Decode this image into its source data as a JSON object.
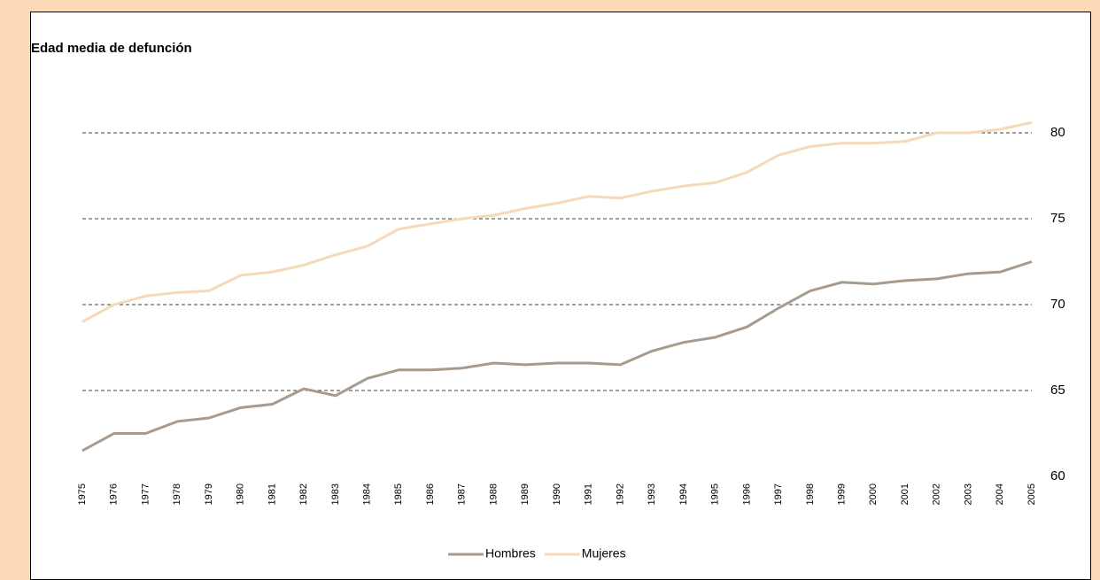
{
  "chart_data": {
    "type": "line",
    "title": "Edad media de defunción",
    "categories": [
      "1975",
      "1976",
      "1977",
      "1978",
      "1979",
      "1980",
      "1981",
      "1982",
      "1983",
      "1984",
      "1985",
      "1986",
      "1987",
      "1988",
      "1989",
      "1990",
      "1991",
      "1992",
      "1993",
      "1994",
      "1995",
      "1996",
      "1997",
      "1998",
      "1999",
      "2000",
      "2001",
      "2002",
      "2003",
      "2004",
      "2005"
    ],
    "series": [
      {
        "name": "Hombres",
        "color": "#a89a8c",
        "values": [
          61.5,
          62.5,
          62.5,
          63.2,
          63.4,
          64.0,
          64.2,
          65.1,
          64.7,
          65.7,
          66.2,
          66.2,
          66.3,
          66.6,
          66.5,
          66.6,
          66.6,
          66.5,
          67.3,
          67.8,
          68.1,
          68.7,
          69.8,
          70.8,
          71.3,
          71.2,
          71.4,
          71.5,
          71.8,
          71.9,
          72.5
        ]
      },
      {
        "name": "Mujeres",
        "color": "#f5d9b8",
        "values": [
          69.0,
          70.0,
          70.5,
          70.7,
          70.8,
          71.7,
          71.9,
          72.3,
          72.9,
          73.4,
          74.4,
          74.7,
          75.0,
          75.2,
          75.6,
          75.9,
          76.3,
          76.2,
          76.6,
          76.9,
          77.1,
          77.7,
          78.7,
          79.2,
          79.4,
          79.4,
          79.5,
          80.0,
          80.0,
          80.2,
          80.6
        ]
      }
    ],
    "ylim": [
      60,
      81
    ],
    "yticks": [
      60,
      65,
      70,
      75,
      80
    ],
    "grid": true,
    "legend": "bottom"
  }
}
